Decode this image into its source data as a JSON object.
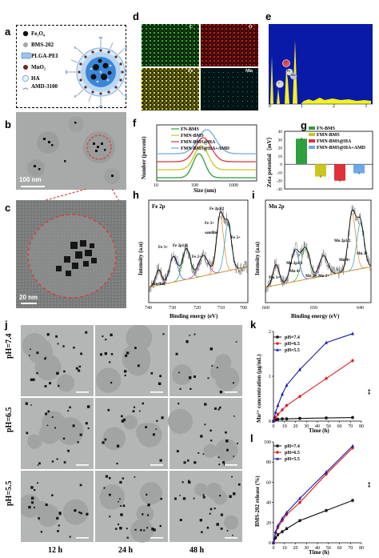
{
  "panels": {
    "a": "a",
    "b": "b",
    "c": "c",
    "d": "d",
    "e": "e",
    "f": "f",
    "g": "g",
    "h": "h",
    "i": "i",
    "j": "j",
    "k": "k",
    "l": "l"
  },
  "legend_a": [
    "Fe₃O₄",
    "BMS-202",
    "PLGA-PEI",
    "MnO₂",
    "HA",
    "AMD-3100"
  ],
  "scale_b": "100 nm",
  "scale_c": "20 nm",
  "eds_labels": [
    "C",
    "O",
    "Fe",
    "Mn"
  ],
  "eds_spectrum": {
    "x_ticks": [
      "0",
      "1",
      "2",
      "3"
    ],
    "peaks": [
      "C",
      "O",
      "Fe",
      "Mn"
    ]
  },
  "colors": {
    "fn": "#2f9e3f",
    "fmn": "#c8c820",
    "fmn_ha": "#e0303a",
    "fmn_ha_amd": "#6fa8e6",
    "ph74": "#111111",
    "ph65": "#d42020",
    "ph55": "#1a1aa8"
  },
  "chart_data": [
    {
      "type": "line",
      "panel": "f",
      "ylabel": "Number (percent)",
      "xlabel": "Size (nm)",
      "x_ticks": [
        "10",
        "100",
        "1000"
      ],
      "x_scale": "log",
      "series": [
        {
          "name": "FN-BMS",
          "peak_x": 70
        },
        {
          "name": "FMN-BMS",
          "peak_x": 78
        },
        {
          "name": "FMN-BMS@HA",
          "peak_x": 85
        },
        {
          "name": "FMN-BMS@HA+AMD",
          "peak_x": 100
        }
      ]
    },
    {
      "type": "bar",
      "panel": "g",
      "ylabel": "Zeta potential（mV）",
      "categories": [
        "FN-BMS",
        "FMN-BMS",
        "FMN-BMS@HA",
        "FMN-BMS@HA+AMD"
      ],
      "values": [
        31,
        -15,
        -20,
        -11
      ],
      "ylim": [
        -30,
        40
      ],
      "y_ticks": [
        "40",
        "30",
        "20",
        "10",
        "0",
        "-10",
        "-20",
        "-30"
      ]
    },
    {
      "type": "line",
      "panel": "h",
      "title": "Fe 2p",
      "xlabel": "Binding energy (eV)",
      "ylabel": "Intensity (a.u)",
      "x_ticks": [
        "740",
        "730",
        "720",
        "710",
        "700"
      ],
      "annotations": [
        "Fe 2p3/2",
        "Fe 2p1/2",
        "satellite",
        "satellite",
        "Fe 3+",
        "Fe 2+",
        "Fe 3+",
        "Fe 2+"
      ]
    },
    {
      "type": "line",
      "panel": "i",
      "title": "Mn 2p",
      "xlabel": "Binding energy (eV)",
      "ylabel": "Intensity (a.u)",
      "x_ticks": [
        "660",
        "650",
        "640"
      ],
      "annotations": [
        "Mn 2p3/2",
        "Mn 2p1/2",
        "Mn 3+",
        "Mn 4+",
        "Mn 2+",
        "Mn 2+",
        "Mn 4+",
        "Mn 3+"
      ]
    },
    {
      "type": "line",
      "panel": "k",
      "xlabel": "Time (h)",
      "ylabel": "Mn²⁺ concentration (μg/mL)",
      "x": [
        0,
        2,
        4,
        8,
        12,
        24,
        48,
        72
      ],
      "xlim": [
        0,
        80
      ],
      "ylim": [
        0,
        2
      ],
      "x_ticks": [
        "0",
        "10",
        "20",
        "30",
        "40",
        "50",
        "60",
        "70",
        "80"
      ],
      "y_ticks": [
        "0",
        "1",
        "2"
      ],
      "annotation": "**",
      "series": [
        {
          "name": "pH=7.4",
          "values": [
            0.0,
            0.03,
            0.04,
            0.05,
            0.05,
            0.06,
            0.07,
            0.08
          ]
        },
        {
          "name": "pH=6.5",
          "values": [
            0.0,
            0.08,
            0.15,
            0.25,
            0.35,
            0.55,
            0.95,
            1.35
          ]
        },
        {
          "name": "pH=5.5",
          "values": [
            0.0,
            0.2,
            0.35,
            0.6,
            0.8,
            1.15,
            1.75,
            1.95
          ]
        }
      ]
    },
    {
      "type": "line",
      "panel": "l",
      "xlabel": "Time (h)",
      "ylabel": "BMS-202 release (%)",
      "x": [
        0,
        2,
        4,
        8,
        12,
        24,
        48,
        72
      ],
      "xlim": [
        0,
        80
      ],
      "ylim": [
        0,
        100
      ],
      "x_ticks": [
        "0",
        "10",
        "20",
        "30",
        "40",
        "50",
        "60",
        "70",
        "80"
      ],
      "y_ticks": [
        "0",
        "20",
        "40",
        "60",
        "80",
        "100"
      ],
      "annotation": "**",
      "series": [
        {
          "name": "pH=7.4",
          "values": [
            0,
            5,
            8,
            11,
            14,
            22,
            32,
            42
          ]
        },
        {
          "name": "pH=6.5",
          "values": [
            0,
            10,
            15,
            22,
            28,
            40,
            68,
            94
          ]
        },
        {
          "name": "pH=5.5",
          "values": [
            0,
            11,
            17,
            24,
            30,
            44,
            70,
            96
          ]
        }
      ]
    }
  ],
  "grid_j": {
    "rows": [
      "pH=7.4",
      "pH=6.5",
      "pH=5.5"
    ],
    "cols": [
      "12 h",
      "24 h",
      "48 h"
    ]
  }
}
